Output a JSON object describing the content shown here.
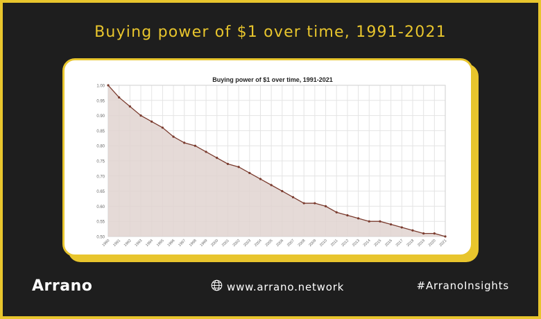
{
  "header": {
    "title": "Buying power of $1 over time, 1991-2021"
  },
  "footer": {
    "brand": "Arrano",
    "website": "www.arrano.network",
    "hashtag": "#ArranoInsights"
  },
  "colors": {
    "accent": "#e8c52d",
    "background": "#1e1e1e",
    "line": "#7a3b2e",
    "fill": "#e0d3d0"
  },
  "chart_data": {
    "type": "area",
    "title": "Buying power of $1 over time, 1991-2021",
    "xlabel": "",
    "ylabel": "",
    "ylim": [
      0.5,
      1.0
    ],
    "grid": true,
    "y_ticks": [
      "1.00",
      "0.95",
      "0.90",
      "0.85",
      "0.80",
      "0.75",
      "0.70",
      "0.65",
      "0.60",
      "0.55",
      "0.50"
    ],
    "x": [
      "1990",
      "1991",
      "1992",
      "1993",
      "1994",
      "1995",
      "1996",
      "1997",
      "1998",
      "1999",
      "2000",
      "2001",
      "2002",
      "2003",
      "2004",
      "2005",
      "2006",
      "2007",
      "2008",
      "2009",
      "2010",
      "2011",
      "2012",
      "2013",
      "2014",
      "2015",
      "2016",
      "2017",
      "2018",
      "2019",
      "2020",
      "2021"
    ],
    "series": [
      {
        "values": [
          1.0,
          0.96,
          0.93,
          0.9,
          0.88,
          0.86,
          0.83,
          0.81,
          0.8,
          0.78,
          0.76,
          0.74,
          0.73,
          0.71,
          0.69,
          0.67,
          0.65,
          0.63,
          0.61,
          0.61,
          0.6,
          0.58,
          0.57,
          0.56,
          0.55,
          0.55,
          0.54,
          0.53,
          0.52,
          0.51,
          0.51,
          0.5
        ]
      }
    ]
  }
}
